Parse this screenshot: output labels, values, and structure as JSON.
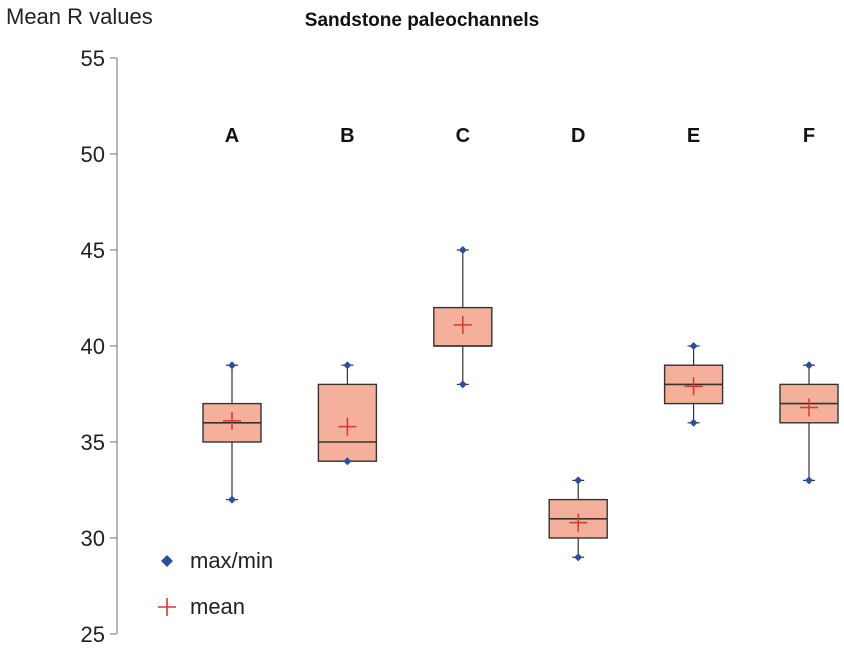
{
  "chart_data": {
    "type": "boxplot",
    "title": "Sandstone paleochannels",
    "ylabel": "Mean R values",
    "ylim": [
      25,
      55
    ],
    "yticks": [
      25,
      30,
      35,
      40,
      45,
      50,
      55
    ],
    "categories": [
      "A",
      "B",
      "C",
      "D",
      "E",
      "F"
    ],
    "series": [
      {
        "name": "A",
        "min": 32,
        "q1": 35,
        "median": 36,
        "q3": 37,
        "max": 39,
        "mean": 36.1
      },
      {
        "name": "B",
        "min": 34,
        "q1": 34,
        "median": 35,
        "q3": 38,
        "max": 39,
        "mean": 35.8
      },
      {
        "name": "C",
        "min": 38,
        "q1": 40,
        "median": 40,
        "q3": 42,
        "max": 45,
        "mean": 41.1
      },
      {
        "name": "D",
        "min": 29,
        "q1": 30,
        "median": 31,
        "q3": 32,
        "max": 33,
        "mean": 30.8
      },
      {
        "name": "E",
        "min": 36,
        "q1": 37,
        "median": 38,
        "q3": 39,
        "max": 40,
        "mean": 37.9
      },
      {
        "name": "F",
        "min": 33,
        "q1": 36,
        "median": 37,
        "q3": 38,
        "max": 39,
        "mean": 36.8
      }
    ],
    "legend": {
      "maxmin": "max/min",
      "mean": "mean"
    },
    "colors": {
      "box_fill": "#f4b09b",
      "box_stroke": "#333333",
      "maxmin": "#2e4f9e",
      "mean": "#e0332b",
      "axis": "#888888"
    }
  }
}
